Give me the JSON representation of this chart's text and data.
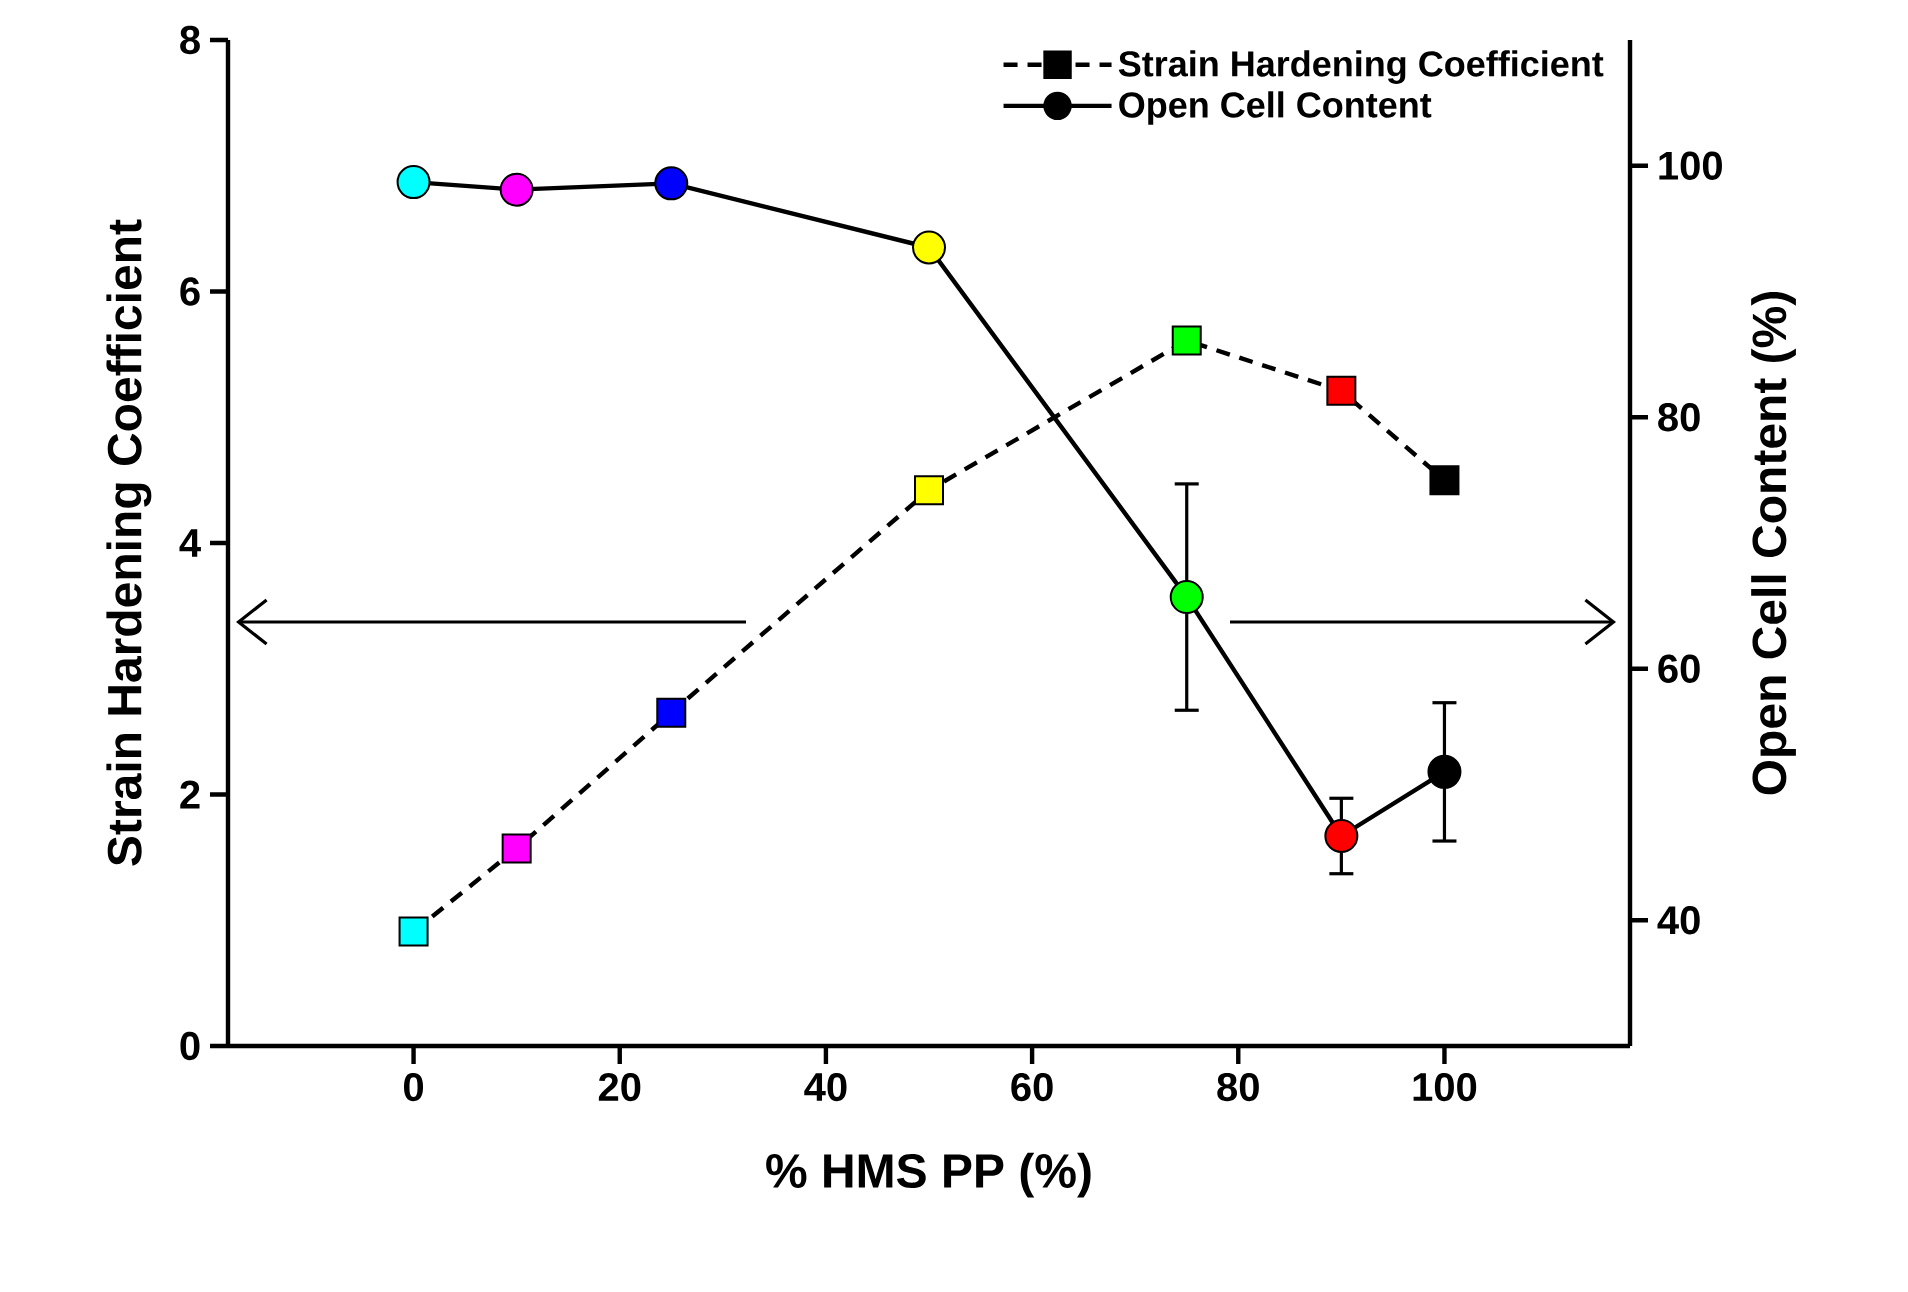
{
  "chart_data": {
    "type": "line",
    "xlabel": "% HMS PP (%)",
    "ylabel": "Strain Hardening Coefficient",
    "y2label": "Open Cell Content (%)",
    "x": [
      0,
      10,
      25,
      50,
      75,
      90,
      100
    ],
    "xlim": [
      -18,
      118
    ],
    "xticks": [
      0,
      20,
      40,
      60,
      80,
      100
    ],
    "ylim": [
      0,
      8
    ],
    "yticks": [
      0,
      2,
      4,
      6,
      8
    ],
    "y2lim": [
      30,
      110
    ],
    "y2ticks": [
      40,
      60,
      80,
      100
    ],
    "legend": "top right",
    "series": [
      {
        "name": "Strain Hardening Coefficient",
        "color": "#000000",
        "line_style": "dashed",
        "marker": "square",
        "colors": [
          "#00ffff",
          "#ff00ff",
          "#0000ff",
          "#ffff00",
          "#00ff00",
          "#ff0000",
          "#000000"
        ],
        "values": [
          0.91,
          1.57,
          2.65,
          4.42,
          5.61,
          5.21,
          4.5
        ]
      },
      {
        "name": "Open Cell Content",
        "color": "#000000",
        "axis": "y2",
        "line_style": "solid",
        "marker": "circle",
        "colors": [
          "#00ffff",
          "#ff00ff",
          "#0000ff",
          "#ffff00",
          "#00ff00",
          "#ff0000",
          "#000000"
        ],
        "values": [
          98.7,
          98.1,
          98.6,
          93.5,
          65.7,
          46.7,
          51.8
        ],
        "errors": [
          null,
          null,
          null,
          null,
          9,
          3,
          5.5
        ]
      }
    ]
  }
}
